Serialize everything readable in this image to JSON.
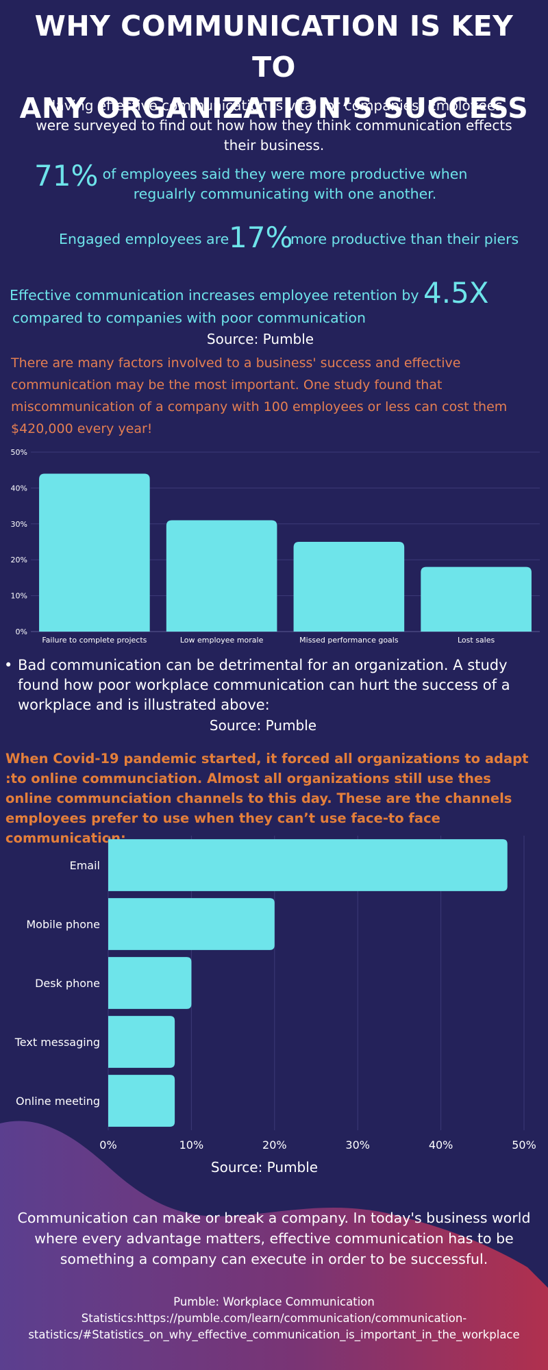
{
  "title_line1": "WHY COMMUNICATION IS KEY TO",
  "title_line2": "ANY ORGANIZATION’S SUCCESS",
  "intro": "Having effective communication is vital for companies. Employees were surveyed to find out how how they think communication effects their business.",
  "stat1": {
    "value": "71%",
    "text": "of employees said they were more productive when regualrly communicating with one another."
  },
  "stat2": {
    "text_before": "Engaged employees are",
    "value": "17%",
    "text_after": "more productive than their piers"
  },
  "stat3": {
    "text_before": "Effective communication increases employee retention by",
    "value": "4.5X",
    "text_after": "compared to companies with poor communication"
  },
  "source_1": "Source: Pumble",
  "orange_paragraph": "There are many factors involved to a business' success and effective communication may be the most important. One study found that miscommunication of a company with 100 employees or less can cost them $420,000 every year!",
  "bullet_paragraph": "Bad communication can be detrimental for an organization.  A study found how poor workplace communication can hurt the success of a workplace and is illustrated above:",
  "source_2": "Source: Pumble",
  "covid_paragraph": "When Covid-19 pandemic started, it forced all organizations to adapt :to online communciation. Almost all organizations still use thes online communciation channels to this day. These are the channels employees prefer to use when they can’t use face-to face communication:",
  "source_3": "Source: Pumble",
  "closing_paragraph": "Communication can make or break a company. In today's business world where every advantage matters, effective communication has to be something a company can execute in order to be successful.",
  "citation_line1": "Pumble: Workplace Communication",
  "citation_line2": "Statistics:https://pumble.com/learn/communication/communication-",
  "citation_line3": "statistics/#Statistics_on_why_effective_communication_is_important_in_the_workplace",
  "colors": {
    "background": "#24225a",
    "accent_cyan": "#6ee4ea",
    "orange": "#e57f52",
    "gradient_purple": "#5b3f8f",
    "gradient_red": "#b0304e"
  },
  "chart_data": [
    {
      "type": "bar",
      "orientation": "vertical",
      "categories": [
        "Failure to complete projects",
        "Low employee morale",
        "Missed performance goals",
        "Lost sales"
      ],
      "values": [
        44,
        31,
        25,
        18
      ],
      "unit": "%",
      "ylim": [
        0,
        50
      ],
      "yticks": [
        "0%",
        "10%",
        "20%",
        "30%",
        "40%",
        "50%"
      ],
      "grid": true,
      "bar_color": "#6ee4ea"
    },
    {
      "type": "bar",
      "orientation": "horizontal",
      "categories": [
        "Email",
        "Mobile phone",
        "Desk phone",
        "Text messaging",
        "Online meeting"
      ],
      "values": [
        48,
        20,
        10,
        8,
        8
      ],
      "unit": "%",
      "xlim": [
        0,
        50
      ],
      "xticks": [
        "0%",
        "10%",
        "20%",
        "30%",
        "40%",
        "50%"
      ],
      "grid": true,
      "bar_color": "#6ee4ea"
    }
  ]
}
